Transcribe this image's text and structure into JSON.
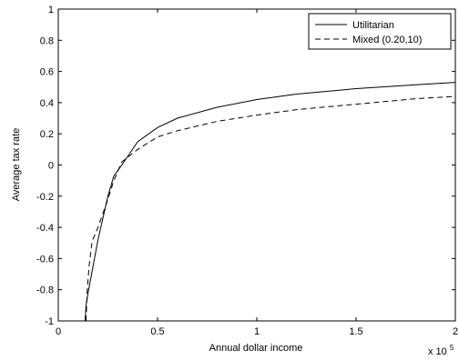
{
  "chart_data": {
    "type": "line",
    "title": "",
    "xlabel": "Annual dollar income",
    "ylabel": "Average tax rate",
    "x_multiplier_label": "x 10",
    "x_multiplier_exponent": "5",
    "xlim": [
      0,
      200000
    ],
    "ylim": [
      -1,
      1
    ],
    "x_ticks": [
      {
        "value": 0,
        "label": "0"
      },
      {
        "value": 50000,
        "label": "0.5"
      },
      {
        "value": 100000,
        "label": "1"
      },
      {
        "value": 150000,
        "label": "1.5"
      },
      {
        "value": 200000,
        "label": "2"
      }
    ],
    "y_ticks": [
      {
        "value": -1,
        "label": "-1"
      },
      {
        "value": -0.8,
        "label": "-0.8"
      },
      {
        "value": -0.6,
        "label": "-0.6"
      },
      {
        "value": -0.4,
        "label": "-0.4"
      },
      {
        "value": -0.2,
        "label": "-0.2"
      },
      {
        "value": 0,
        "label": "0"
      },
      {
        "value": 0.2,
        "label": "0.2"
      },
      {
        "value": 0.4,
        "label": "0.4"
      },
      {
        "value": 0.6,
        "label": "0.6"
      },
      {
        "value": 0.8,
        "label": "0.8"
      },
      {
        "value": 1,
        "label": "1"
      }
    ],
    "grid": false,
    "legend_position": "top-right",
    "series": [
      {
        "name": "Utilitarian",
        "style": "solid",
        "color": "#000000",
        "points": [
          [
            13500,
            -1.0
          ],
          [
            14000,
            -0.9
          ],
          [
            15000,
            -0.82
          ],
          [
            20000,
            -0.48
          ],
          [
            25000,
            -0.2
          ],
          [
            28000,
            -0.07
          ],
          [
            32000,
            0.0
          ],
          [
            40000,
            0.15
          ],
          [
            50000,
            0.24
          ],
          [
            60000,
            0.3
          ],
          [
            80000,
            0.37
          ],
          [
            100000,
            0.42
          ],
          [
            120000,
            0.455
          ],
          [
            150000,
            0.49
          ],
          [
            180000,
            0.515
          ],
          [
            200000,
            0.53
          ]
        ]
      },
      {
        "name": "Mixed (0.20,10)",
        "style": "dashed",
        "color": "#000000",
        "points": [
          [
            14000,
            -1.0
          ],
          [
            14500,
            -0.82
          ],
          [
            15500,
            -0.65
          ],
          [
            17000,
            -0.49
          ],
          [
            20000,
            -0.4
          ],
          [
            25000,
            -0.22
          ],
          [
            28000,
            -0.1
          ],
          [
            32000,
            0.02
          ],
          [
            40000,
            0.1
          ],
          [
            50000,
            0.18
          ],
          [
            60000,
            0.22
          ],
          [
            80000,
            0.28
          ],
          [
            100000,
            0.32
          ],
          [
            120000,
            0.355
          ],
          [
            150000,
            0.39
          ],
          [
            180000,
            0.425
          ],
          [
            200000,
            0.44
          ]
        ]
      }
    ]
  }
}
